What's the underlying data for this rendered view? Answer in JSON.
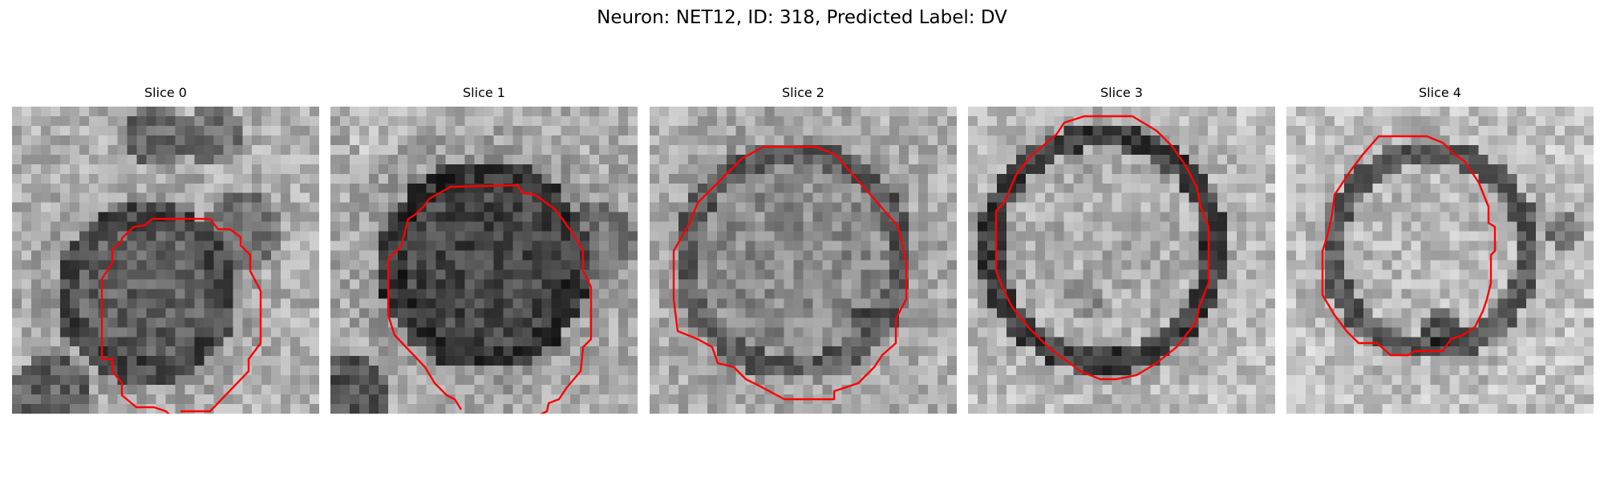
{
  "figure": {
    "title": "Neuron: NET12, ID: 318, Predicted Label: DV",
    "outline_color": "#ff0000",
    "colormap": "gray"
  },
  "panels": [
    {
      "title": "Slice 0"
    },
    {
      "title": "Slice 1"
    },
    {
      "title": "Slice 2"
    },
    {
      "title": "Slice 3"
    },
    {
      "title": "Slice 4"
    }
  ]
}
